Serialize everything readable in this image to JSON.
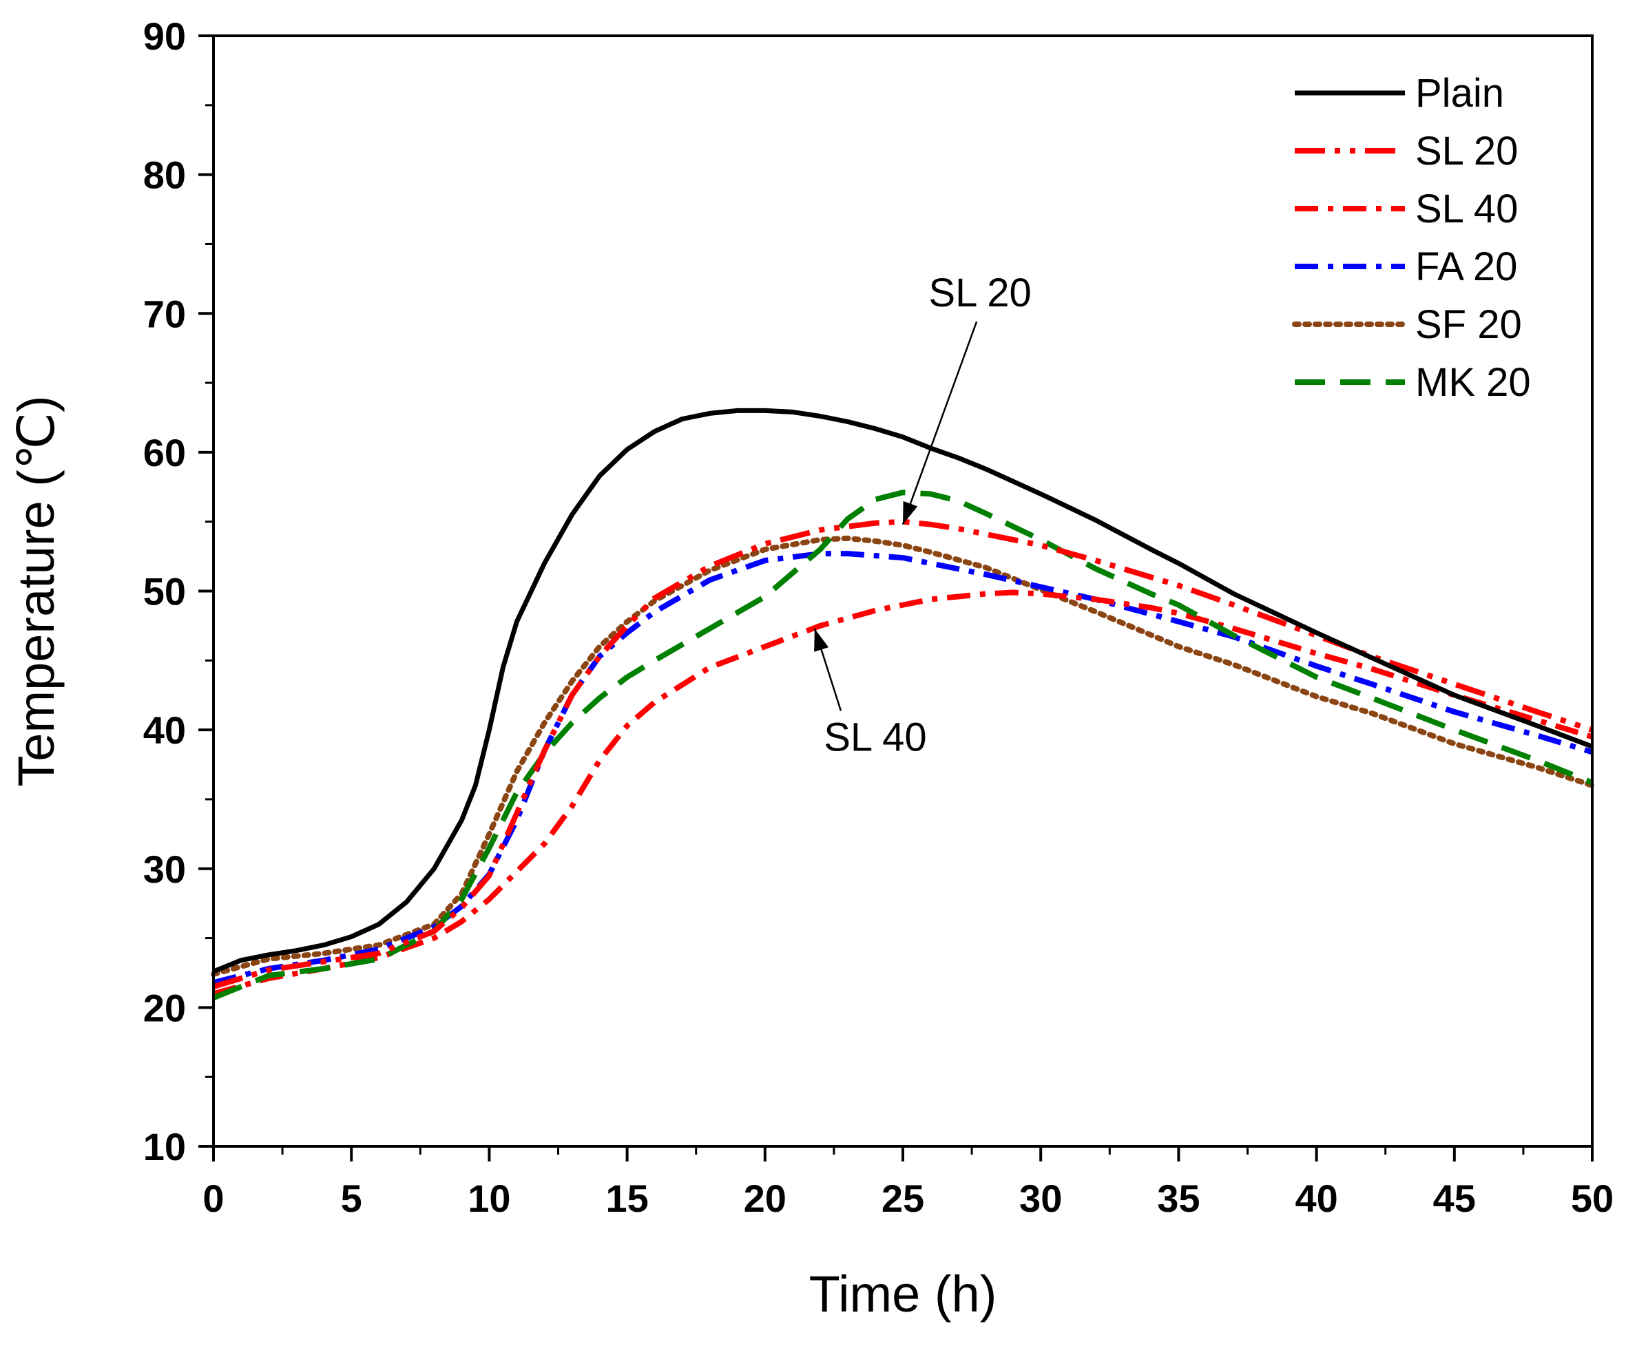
{
  "chart_data": {
    "type": "line",
    "title": "",
    "xlabel": "Time (h)",
    "ylabel": "Temperature (℃)",
    "xlim": [
      0,
      50
    ],
    "ylim": [
      10,
      90
    ],
    "x_ticks": [
      "0",
      "5",
      "10",
      "15",
      "20",
      "25",
      "30",
      "35",
      "40",
      "45",
      "50"
    ],
    "y_ticks": [
      "10",
      "20",
      "30",
      "40",
      "50",
      "60",
      "70",
      "80",
      "90"
    ],
    "grid": false,
    "legend_position": "top-right",
    "series": [
      {
        "name": "Plain",
        "color": "#000000",
        "style": "solid",
        "points": [
          [
            0,
            22.6
          ],
          [
            1,
            23.4
          ],
          [
            2,
            23.8
          ],
          [
            3,
            24.1
          ],
          [
            4,
            24.5
          ],
          [
            5,
            25.1
          ],
          [
            6,
            26.0
          ],
          [
            7,
            27.6
          ],
          [
            8,
            30.0
          ],
          [
            9,
            33.5
          ],
          [
            9.5,
            36.0
          ],
          [
            10,
            40.0
          ],
          [
            10.5,
            44.5
          ],
          [
            11,
            47.8
          ],
          [
            12,
            52.0
          ],
          [
            13,
            55.5
          ],
          [
            14,
            58.3
          ],
          [
            15,
            60.2
          ],
          [
            16,
            61.5
          ],
          [
            17,
            62.4
          ],
          [
            18,
            62.8
          ],
          [
            19,
            63.0
          ],
          [
            20,
            63.0
          ],
          [
            21,
            62.9
          ],
          [
            22,
            62.6
          ],
          [
            23,
            62.2
          ],
          [
            24,
            61.7
          ],
          [
            25,
            61.1
          ],
          [
            26,
            60.3
          ],
          [
            27,
            59.6
          ],
          [
            28,
            58.8
          ],
          [
            30,
            57.0
          ],
          [
            32,
            55.1
          ],
          [
            34,
            53.0
          ],
          [
            35,
            52.0
          ],
          [
            37,
            49.8
          ],
          [
            40,
            47.0
          ],
          [
            42,
            45.2
          ],
          [
            45,
            42.5
          ],
          [
            48,
            40.3
          ],
          [
            50,
            38.8
          ]
        ]
      },
      {
        "name": "SL 20",
        "color": "#ff0000",
        "style": "dash-dot-dot",
        "points": [
          [
            0,
            21.5
          ],
          [
            2,
            22.7
          ],
          [
            4,
            23.3
          ],
          [
            6,
            23.9
          ],
          [
            8,
            25.5
          ],
          [
            9,
            27.2
          ],
          [
            10,
            29.5
          ],
          [
            11,
            34.0
          ],
          [
            12,
            38.5
          ],
          [
            13,
            42.5
          ],
          [
            14,
            45.3
          ],
          [
            15,
            47.5
          ],
          [
            16,
            49.5
          ],
          [
            18,
            51.8
          ],
          [
            20,
            53.4
          ],
          [
            22,
            54.4
          ],
          [
            24,
            54.9
          ],
          [
            25,
            55.0
          ],
          [
            26,
            54.8
          ],
          [
            27,
            54.5
          ],
          [
            28,
            54.1
          ],
          [
            30,
            53.3
          ],
          [
            32,
            52.2
          ],
          [
            34,
            51.0
          ],
          [
            35,
            50.4
          ],
          [
            37,
            49.0
          ],
          [
            40,
            46.8
          ],
          [
            42,
            45.3
          ],
          [
            45,
            43.3
          ],
          [
            48,
            41.3
          ],
          [
            50,
            40.0
          ]
        ]
      },
      {
        "name": "SL 40",
        "color": "#ff0000",
        "style": "dash-dot",
        "points": [
          [
            0,
            21.0
          ],
          [
            2,
            22.1
          ],
          [
            4,
            22.8
          ],
          [
            6,
            23.6
          ],
          [
            8,
            25.0
          ],
          [
            9,
            26.2
          ],
          [
            10,
            27.8
          ],
          [
            11,
            29.8
          ],
          [
            12,
            31.8
          ],
          [
            13,
            34.5
          ],
          [
            14,
            37.8
          ],
          [
            15,
            40.3
          ],
          [
            16,
            42.0
          ],
          [
            18,
            44.5
          ],
          [
            20,
            46.0
          ],
          [
            22,
            47.5
          ],
          [
            24,
            48.6
          ],
          [
            26,
            49.4
          ],
          [
            28,
            49.8
          ],
          [
            29,
            49.9
          ],
          [
            30,
            49.8
          ],
          [
            32,
            49.4
          ],
          [
            34,
            48.8
          ],
          [
            35,
            48.4
          ],
          [
            37,
            47.3
          ],
          [
            40,
            45.5
          ],
          [
            42,
            44.4
          ],
          [
            45,
            42.5
          ],
          [
            48,
            40.7
          ],
          [
            50,
            39.5
          ]
        ]
      },
      {
        "name": "FA 20",
        "color": "#0000ff",
        "style": "dash-dot",
        "points": [
          [
            0,
            21.8
          ],
          [
            2,
            22.8
          ],
          [
            4,
            23.4
          ],
          [
            6,
            24.2
          ],
          [
            8,
            25.8
          ],
          [
            9,
            27.3
          ],
          [
            10,
            29.6
          ],
          [
            11,
            33.5
          ],
          [
            12,
            38.5
          ],
          [
            13,
            42.5
          ],
          [
            14,
            45.3
          ],
          [
            15,
            47.0
          ],
          [
            16,
            48.5
          ],
          [
            18,
            50.8
          ],
          [
            20,
            52.2
          ],
          [
            22,
            52.7
          ],
          [
            23,
            52.7
          ],
          [
            25,
            52.4
          ],
          [
            26,
            52.0
          ],
          [
            28,
            51.2
          ],
          [
            30,
            50.3
          ],
          [
            32,
            49.4
          ],
          [
            35,
            47.8
          ],
          [
            37,
            46.7
          ],
          [
            40,
            44.6
          ],
          [
            42,
            43.3
          ],
          [
            45,
            41.3
          ],
          [
            48,
            39.6
          ],
          [
            50,
            38.4
          ]
        ]
      },
      {
        "name": "SF 20",
        "color": "#8b4513",
        "style": "dotted",
        "points": [
          [
            0,
            22.4
          ],
          [
            2,
            23.5
          ],
          [
            4,
            23.9
          ],
          [
            6,
            24.5
          ],
          [
            8,
            26.0
          ],
          [
            9,
            28.2
          ],
          [
            10,
            32.5
          ],
          [
            11,
            37.0
          ],
          [
            12,
            40.5
          ],
          [
            13,
            43.5
          ],
          [
            14,
            46.0
          ],
          [
            15,
            47.8
          ],
          [
            16,
            49.3
          ],
          [
            18,
            51.5
          ],
          [
            20,
            53.0
          ],
          [
            22,
            53.7
          ],
          [
            23,
            53.8
          ],
          [
            24,
            53.6
          ],
          [
            25,
            53.3
          ],
          [
            26,
            52.8
          ],
          [
            28,
            51.7
          ],
          [
            30,
            50.1
          ],
          [
            32,
            48.5
          ],
          [
            35,
            46.0
          ],
          [
            37,
            44.7
          ],
          [
            40,
            42.4
          ],
          [
            42,
            41.2
          ],
          [
            45,
            39.0
          ],
          [
            48,
            37.3
          ],
          [
            50,
            36.0
          ]
        ]
      },
      {
        "name": "MK 20",
        "color": "#008000",
        "style": "dashed",
        "points": [
          [
            0,
            20.7
          ],
          [
            2,
            22.3
          ],
          [
            4,
            22.8
          ],
          [
            6,
            23.5
          ],
          [
            8,
            25.5
          ],
          [
            9,
            27.8
          ],
          [
            10,
            31.5
          ],
          [
            11,
            35.5
          ],
          [
            12,
            38.3
          ],
          [
            13,
            40.5
          ],
          [
            14,
            42.3
          ],
          [
            15,
            43.8
          ],
          [
            16,
            45.0
          ],
          [
            18,
            47.3
          ],
          [
            20,
            49.6
          ],
          [
            22,
            53.0
          ],
          [
            23,
            55.2
          ],
          [
            24,
            56.6
          ],
          [
            25,
            57.1
          ],
          [
            26,
            57.0
          ],
          [
            27,
            56.5
          ],
          [
            28,
            55.6
          ],
          [
            30,
            53.7
          ],
          [
            32,
            51.6
          ],
          [
            34,
            49.8
          ],
          [
            35,
            49.0
          ],
          [
            37,
            46.8
          ],
          [
            40,
            43.8
          ],
          [
            42,
            42.3
          ],
          [
            45,
            40.0
          ],
          [
            48,
            37.8
          ],
          [
            50,
            36.2
          ]
        ]
      }
    ],
    "annotations": [
      {
        "text": "SL 20",
        "target_series": "SL 20",
        "target": [
          25,
          54.8
        ],
        "label_anchor": [
          27.8,
          70.5
        ]
      },
      {
        "text": "SL 40",
        "target_series": "SL 40",
        "target": [
          21.8,
          47.3
        ],
        "label_anchor": [
          24,
          38.5
        ]
      }
    ]
  }
}
